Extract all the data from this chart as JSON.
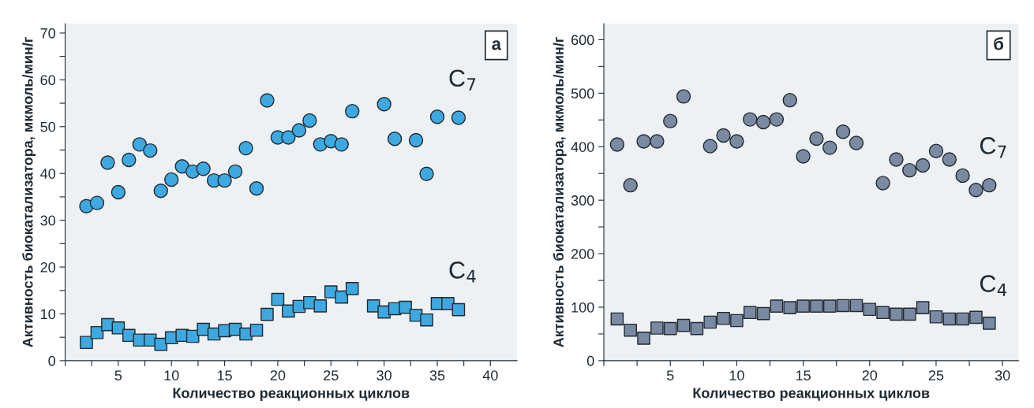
{
  "chart_data": [
    {
      "type": "scatter",
      "annotations": [
        "а"
      ],
      "xlabel": "Количество реакционных циклов",
      "ylabel": "Активность биокатализатора, мкмоль/мин/г",
      "xlim": [
        0,
        42.5
      ],
      "ylim": [
        0,
        72
      ],
      "xticks": [
        {
          "value": 0,
          "label": null
        },
        {
          "value": 2.5,
          "label": null
        },
        5,
        {
          "value": 7.5,
          "label": null
        },
        10,
        {
          "value": 12.5,
          "label": null
        },
        15,
        {
          "value": 17.5,
          "label": null
        },
        20,
        {
          "value": 22.5,
          "label": null
        },
        25,
        {
          "value": 27.5,
          "label": null
        },
        30,
        {
          "value": 32.5,
          "label": null
        },
        35,
        {
          "value": 37.5,
          "label": null
        },
        40
      ],
      "yticks": [
        0,
        {
          "value": 5,
          "label": null
        },
        10,
        {
          "value": 15,
          "label": null
        },
        20,
        {
          "value": 25,
          "label": null
        },
        30,
        {
          "value": 35,
          "label": null
        },
        40,
        {
          "value": 45,
          "label": null
        },
        50,
        {
          "value": 55,
          "label": null
        },
        60,
        {
          "value": 65,
          "label": null
        },
        70
      ],
      "series": [
        {
          "name": "C$_{7}$",
          "marker": "circle",
          "color": "#3ea9e0",
          "x": [
            2,
            3,
            4,
            5,
            6,
            7,
            8,
            9,
            10,
            11,
            12,
            13,
            14,
            15,
            16,
            17,
            18,
            19,
            20,
            21,
            22,
            23,
            24,
            25,
            26,
            27,
            30,
            31,
            33,
            34,
            35,
            37
          ],
          "values": [
            33.0,
            33.7,
            42.3,
            36.0,
            42.9,
            46.2,
            44.9,
            36.3,
            38.7,
            41.5,
            40.4,
            41.0,
            38.5,
            38.5,
            40.4,
            45.4,
            36.8,
            55.6,
            47.7,
            47.7,
            49.2,
            51.3,
            46.2,
            46.9,
            46.2,
            53.3,
            54.8,
            47.4,
            47.1,
            39.9,
            52.1,
            51.9
          ]
        },
        {
          "name": "C$_{4}$",
          "marker": "square",
          "color": "#3ea9e0",
          "x": [
            2,
            3,
            4,
            5,
            6,
            7,
            8,
            9,
            10,
            11,
            12,
            13,
            14,
            15,
            16,
            17,
            18,
            19,
            20,
            21,
            22,
            23,
            24,
            25,
            26,
            27,
            29,
            30,
            31,
            32,
            33,
            34,
            35,
            36,
            37
          ],
          "values": [
            3.9,
            6.0,
            7.7,
            7.0,
            5.4,
            4.4,
            4.4,
            3.5,
            4.9,
            5.4,
            5.2,
            6.7,
            5.7,
            6.4,
            6.7,
            5.7,
            6.5,
            9.9,
            13.1,
            10.6,
            11.6,
            12.4,
            11.7,
            14.7,
            13.6,
            15.4,
            11.7,
            10.4,
            11.1,
            11.4,
            9.7,
            8.7,
            12.2,
            12.2,
            10.9
          ]
        }
      ]
    },
    {
      "type": "scatter",
      "annotations": [
        "б"
      ],
      "xlabel": "Количество реакционных циклов",
      "ylabel": "Активность биокатализатора, мкмоль/мин/г",
      "xlim": [
        0,
        31.2
      ],
      "ylim": [
        0,
        630
      ],
      "xticks": [
        {
          "value": 0,
          "label": null
        },
        {
          "value": 2.5,
          "label": null
        },
        5,
        {
          "value": 7.5,
          "label": null
        },
        10,
        {
          "value": 12.5,
          "label": null
        },
        15,
        {
          "value": 17.5,
          "label": null
        },
        20,
        {
          "value": 22.5,
          "label": null
        },
        25,
        {
          "value": 27.5,
          "label": null
        },
        30
      ],
      "yticks": [
        0,
        {
          "value": 50,
          "label": null
        },
        100,
        {
          "value": 150,
          "label": null
        },
        200,
        {
          "value": 250,
          "label": null
        },
        300,
        {
          "value": 350,
          "label": null
        },
        400,
        {
          "value": 450,
          "label": null
        },
        500,
        {
          "value": 550,
          "label": null
        },
        600
      ],
      "series": [
        {
          "name": "C$_{7}$",
          "marker": "circle",
          "color": "#7a8aa3",
          "x": [
            1,
            2,
            3,
            4,
            5,
            6,
            8,
            9,
            10,
            11,
            12,
            13,
            14,
            15,
            16,
            17,
            18,
            19,
            21,
            22,
            23,
            24,
            25,
            26,
            27,
            28,
            29
          ],
          "values": [
            404,
            328,
            410,
            410,
            448,
            494,
            401,
            421,
            410,
            451,
            446,
            451,
            487,
            382,
            415,
            398,
            428,
            407,
            332,
            376,
            356,
            365,
            392,
            376,
            346,
            319,
            328
          ]
        },
        {
          "name": "C$_{4}$",
          "marker": "square",
          "color": "#7a8aa3",
          "x": [
            1,
            2,
            3,
            4,
            5,
            6,
            7,
            8,
            9,
            10,
            11,
            12,
            13,
            14,
            15,
            16,
            17,
            18,
            19,
            20,
            21,
            22,
            23,
            24,
            25,
            26,
            27,
            28,
            29
          ],
          "values": [
            78,
            57,
            42,
            61,
            60,
            66,
            60,
            72,
            79,
            75,
            90,
            88,
            102,
            99,
            102,
            102,
            102,
            103,
            103,
            96,
            90,
            87,
            87,
            99,
            82,
            78,
            78,
            81,
            70
          ]
        }
      ]
    }
  ]
}
